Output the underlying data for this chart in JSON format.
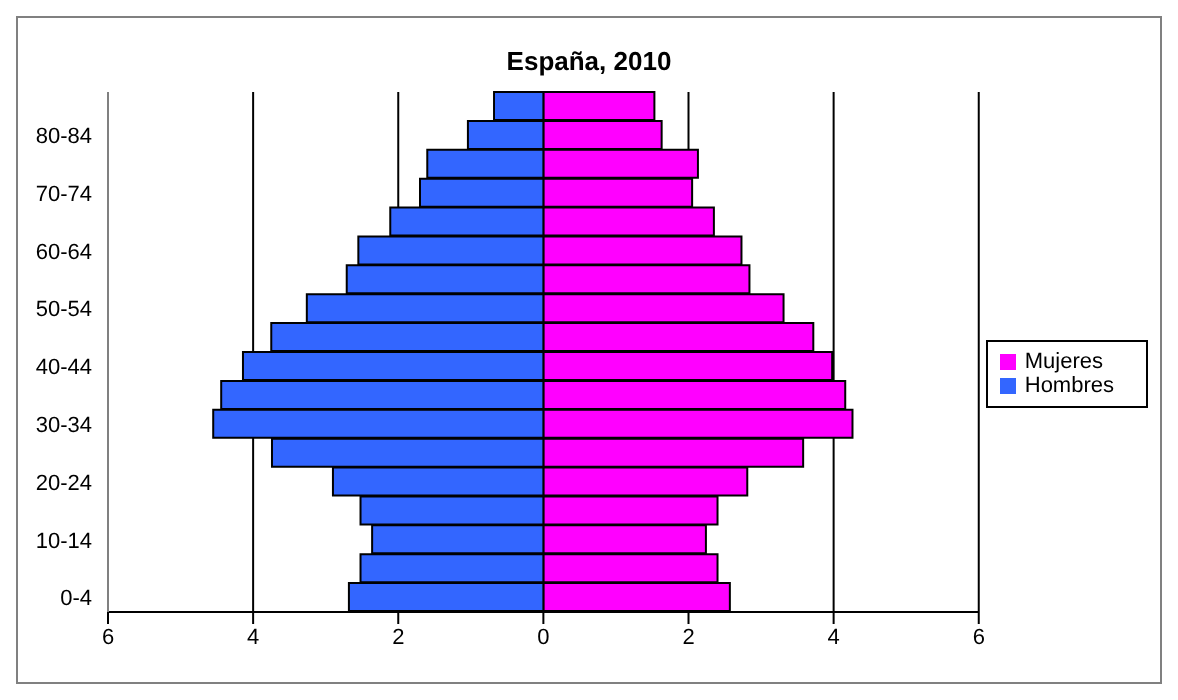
{
  "chart_data": {
    "type": "bar",
    "orientation": "horizontal",
    "stacked": true,
    "title": "España, 2010",
    "categories": [
      null,
      "80-84",
      null,
      "70-74",
      null,
      "60-64",
      null,
      "50-54",
      null,
      "40-44",
      null,
      "30-34",
      null,
      "20-24",
      null,
      "10-14",
      null,
      "0-4"
    ],
    "series": [
      {
        "name": "Mujeres",
        "color": "#ff00ff",
        "values": [
          1.53,
          1.63,
          2.13,
          2.05,
          2.35,
          2.73,
          2.84,
          3.31,
          3.72,
          3.98,
          4.16,
          4.26,
          3.58,
          2.81,
          2.4,
          2.24,
          2.4,
          2.57
        ]
      },
      {
        "name": "Hombres",
        "color": "#3366ff",
        "values": [
          -0.68,
          -1.04,
          -1.6,
          -1.7,
          -2.11,
          -2.55,
          -2.71,
          -3.26,
          -3.75,
          -4.14,
          -4.44,
          -4.55,
          -3.74,
          -2.9,
          -2.52,
          -2.36,
          -2.52,
          -2.68
        ]
      }
    ],
    "xlim": [
      -6,
      6
    ],
    "xticks": [
      {
        "value": -6,
        "label": "6"
      },
      {
        "value": -4,
        "label": "4"
      },
      {
        "value": -2,
        "label": "2"
      },
      0,
      2,
      4,
      6
    ],
    "grid": "x",
    "legend": "right"
  }
}
